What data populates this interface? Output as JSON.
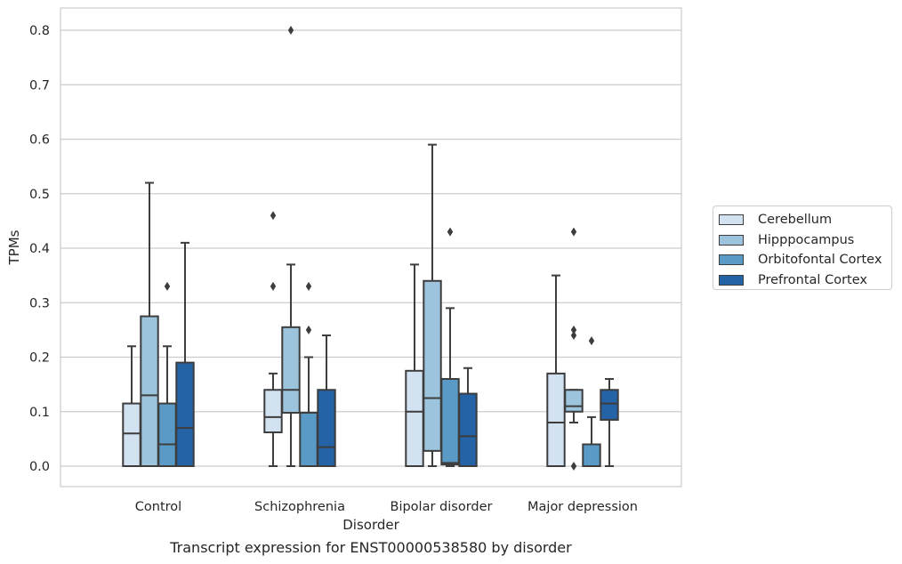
{
  "chart_data": {
    "type": "box",
    "xlabel": "Disorder",
    "ylabel": "TPMs",
    "ylim": [
      -0.04,
      0.84
    ],
    "yticks": [
      "0.0",
      "0.1",
      "0.2",
      "0.3",
      "0.4",
      "0.5",
      "0.6",
      "0.7",
      "0.8"
    ],
    "grid": true,
    "legend_position": "right",
    "categories": [
      "Control",
      "Schizophrenia",
      "Bipolar disorder",
      "Major depression"
    ],
    "series": [
      {
        "name": "Cerebellum",
        "color": "#d2e2f1",
        "boxes": [
          {
            "whislo": 0.0,
            "q1": 0.0,
            "med": 0.06,
            "q3": 0.115,
            "whishi": 0.22,
            "fliers": []
          },
          {
            "whislo": 0.0,
            "q1": 0.062,
            "med": 0.09,
            "q3": 0.14,
            "whishi": 0.17,
            "fliers": [
              0.33,
              0.46
            ]
          },
          {
            "whislo": 0.0,
            "q1": 0.0,
            "med": 0.1,
            "q3": 0.175,
            "whishi": 0.37,
            "fliers": []
          },
          {
            "whislo": 0.0,
            "q1": 0.0,
            "med": 0.08,
            "q3": 0.17,
            "whishi": 0.35,
            "fliers": []
          }
        ]
      },
      {
        "name": "Hipppocampus",
        "color": "#9cc5dd",
        "boxes": [
          {
            "whislo": 0.0,
            "q1": 0.0,
            "med": 0.13,
            "q3": 0.275,
            "whishi": 0.52,
            "fliers": []
          },
          {
            "whislo": 0.0,
            "q1": 0.098,
            "med": 0.14,
            "q3": 0.255,
            "whishi": 0.37,
            "fliers": [
              0.8
            ]
          },
          {
            "whislo": 0.0,
            "q1": 0.028,
            "med": 0.125,
            "q3": 0.34,
            "whishi": 0.59,
            "fliers": []
          },
          {
            "whislo": 0.08,
            "q1": 0.1,
            "med": 0.11,
            "q3": 0.14,
            "whishi": 0.14,
            "fliers": [
              0.24,
              0.25,
              0.43,
              0.0
            ]
          }
        ]
      },
      {
        "name": "Orbitofontal Cortex",
        "color": "#5a9ac6",
        "boxes": [
          {
            "whislo": 0.0,
            "q1": 0.0,
            "med": 0.04,
            "q3": 0.115,
            "whishi": 0.22,
            "fliers": [
              0.33
            ]
          },
          {
            "whislo": 0.0,
            "q1": 0.0,
            "med": 0.0,
            "q3": 0.098,
            "whishi": 0.2,
            "fliers": [
              0.25,
              0.33
            ]
          },
          {
            "whislo": 0.0,
            "q1": 0.003,
            "med": 0.006,
            "q3": 0.16,
            "whishi": 0.29,
            "fliers": [
              0.43
            ]
          },
          {
            "whislo": 0.0,
            "q1": 0.0,
            "med": 0.0,
            "q3": 0.04,
            "whishi": 0.09,
            "fliers": [
              0.23
            ]
          }
        ]
      },
      {
        "name": "Prefrontal Cortex",
        "color": "#2563a7",
        "boxes": [
          {
            "whislo": 0.0,
            "q1": 0.0,
            "med": 0.07,
            "q3": 0.19,
            "whishi": 0.41,
            "fliers": []
          },
          {
            "whislo": 0.0,
            "q1": 0.0,
            "med": 0.035,
            "q3": 0.14,
            "whishi": 0.24,
            "fliers": []
          },
          {
            "whislo": 0.0,
            "q1": 0.0,
            "med": 0.055,
            "q3": 0.133,
            "whishi": 0.18,
            "fliers": []
          },
          {
            "whislo": 0.0,
            "q1": 0.085,
            "med": 0.115,
            "q3": 0.14,
            "whishi": 0.16,
            "fliers": []
          }
        ]
      }
    ]
  },
  "caption": "Transcript expression for ENST00000538580 by disorder"
}
